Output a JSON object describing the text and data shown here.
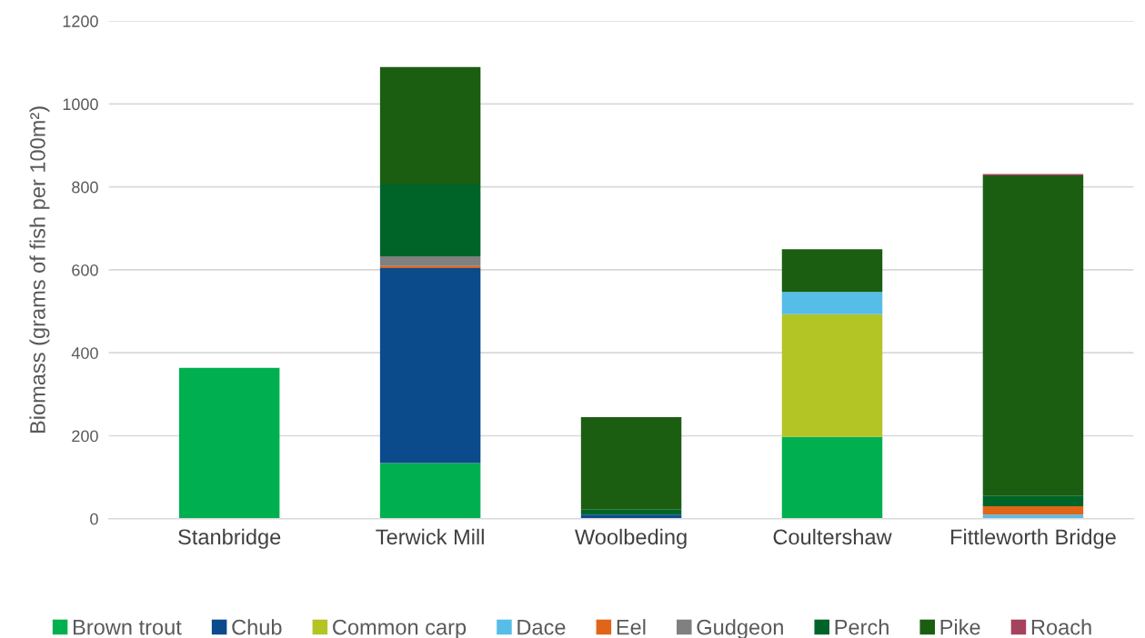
{
  "chart_data": {
    "type": "bar",
    "stacked": true,
    "ylabel": "Biomass (grams of fish per 100m²)",
    "categories": [
      "Stanbridge",
      "Terwick Mill",
      "Woolbeding",
      "Coultershaw",
      "Fittleworth Bridge"
    ],
    "series": [
      {
        "name": "Brown trout",
        "color": "#00b050",
        "values": [
          364,
          134,
          0,
          197,
          0
        ]
      },
      {
        "name": "Chub",
        "color": "#0b4a8b",
        "values": [
          0,
          470,
          10,
          0,
          0
        ]
      },
      {
        "name": "Common carp",
        "color": "#b3c425",
        "values": [
          0,
          0,
          0,
          296,
          0
        ]
      },
      {
        "name": "Dace",
        "color": "#56bde8",
        "values": [
          0,
          0,
          0,
          54,
          10
        ]
      },
      {
        "name": "Eel",
        "color": "#e06519",
        "values": [
          0,
          5,
          0,
          0,
          20
        ]
      },
      {
        "name": "Gudgeon",
        "color": "#808080",
        "values": [
          0,
          24,
          0,
          0,
          0
        ]
      },
      {
        "name": "Perch",
        "color": "#006428",
        "values": [
          0,
          175,
          12,
          0,
          26
        ]
      },
      {
        "name": "Pike",
        "color": "#1b5e12",
        "values": [
          0,
          281,
          223,
          103,
          772
        ]
      },
      {
        "name": "Roach",
        "color": "#a5425e",
        "values": [
          0,
          0,
          0,
          0,
          3
        ]
      }
    ],
    "ylim": [
      0,
      1200
    ],
    "yticks": [
      0,
      200,
      400,
      600,
      800,
      1000,
      1200
    ],
    "grid": "y",
    "legend": "bottom"
  }
}
